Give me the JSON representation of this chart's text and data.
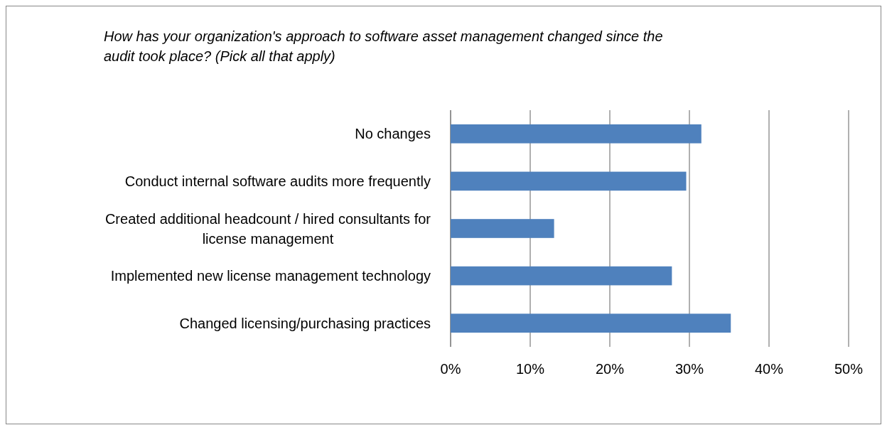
{
  "chart_data": {
    "type": "bar",
    "orientation": "horizontal",
    "title": "How has your organization's approach to software asset management changed since the audit took place? (Pick all that apply)",
    "categories": [
      "No changes",
      "Conduct internal software audits more frequently",
      "Created additional headcount / hired consultants for license management",
      "Implemented new license management technology",
      "Changed licensing/purchasing practices"
    ],
    "values": [
      31.5,
      29.6,
      13.0,
      27.8,
      35.2
    ],
    "color": "#4f81bd",
    "xlim": [
      0,
      50
    ],
    "xticks": [
      {
        "value": 0,
        "label": "0%"
      },
      {
        "value": 10,
        "label": "10%"
      },
      {
        "value": 20,
        "label": "20%"
      },
      {
        "value": 30,
        "label": "30%"
      },
      {
        "value": 40,
        "label": "40%"
      },
      {
        "value": 50,
        "label": "50%"
      }
    ],
    "grid": "x"
  }
}
